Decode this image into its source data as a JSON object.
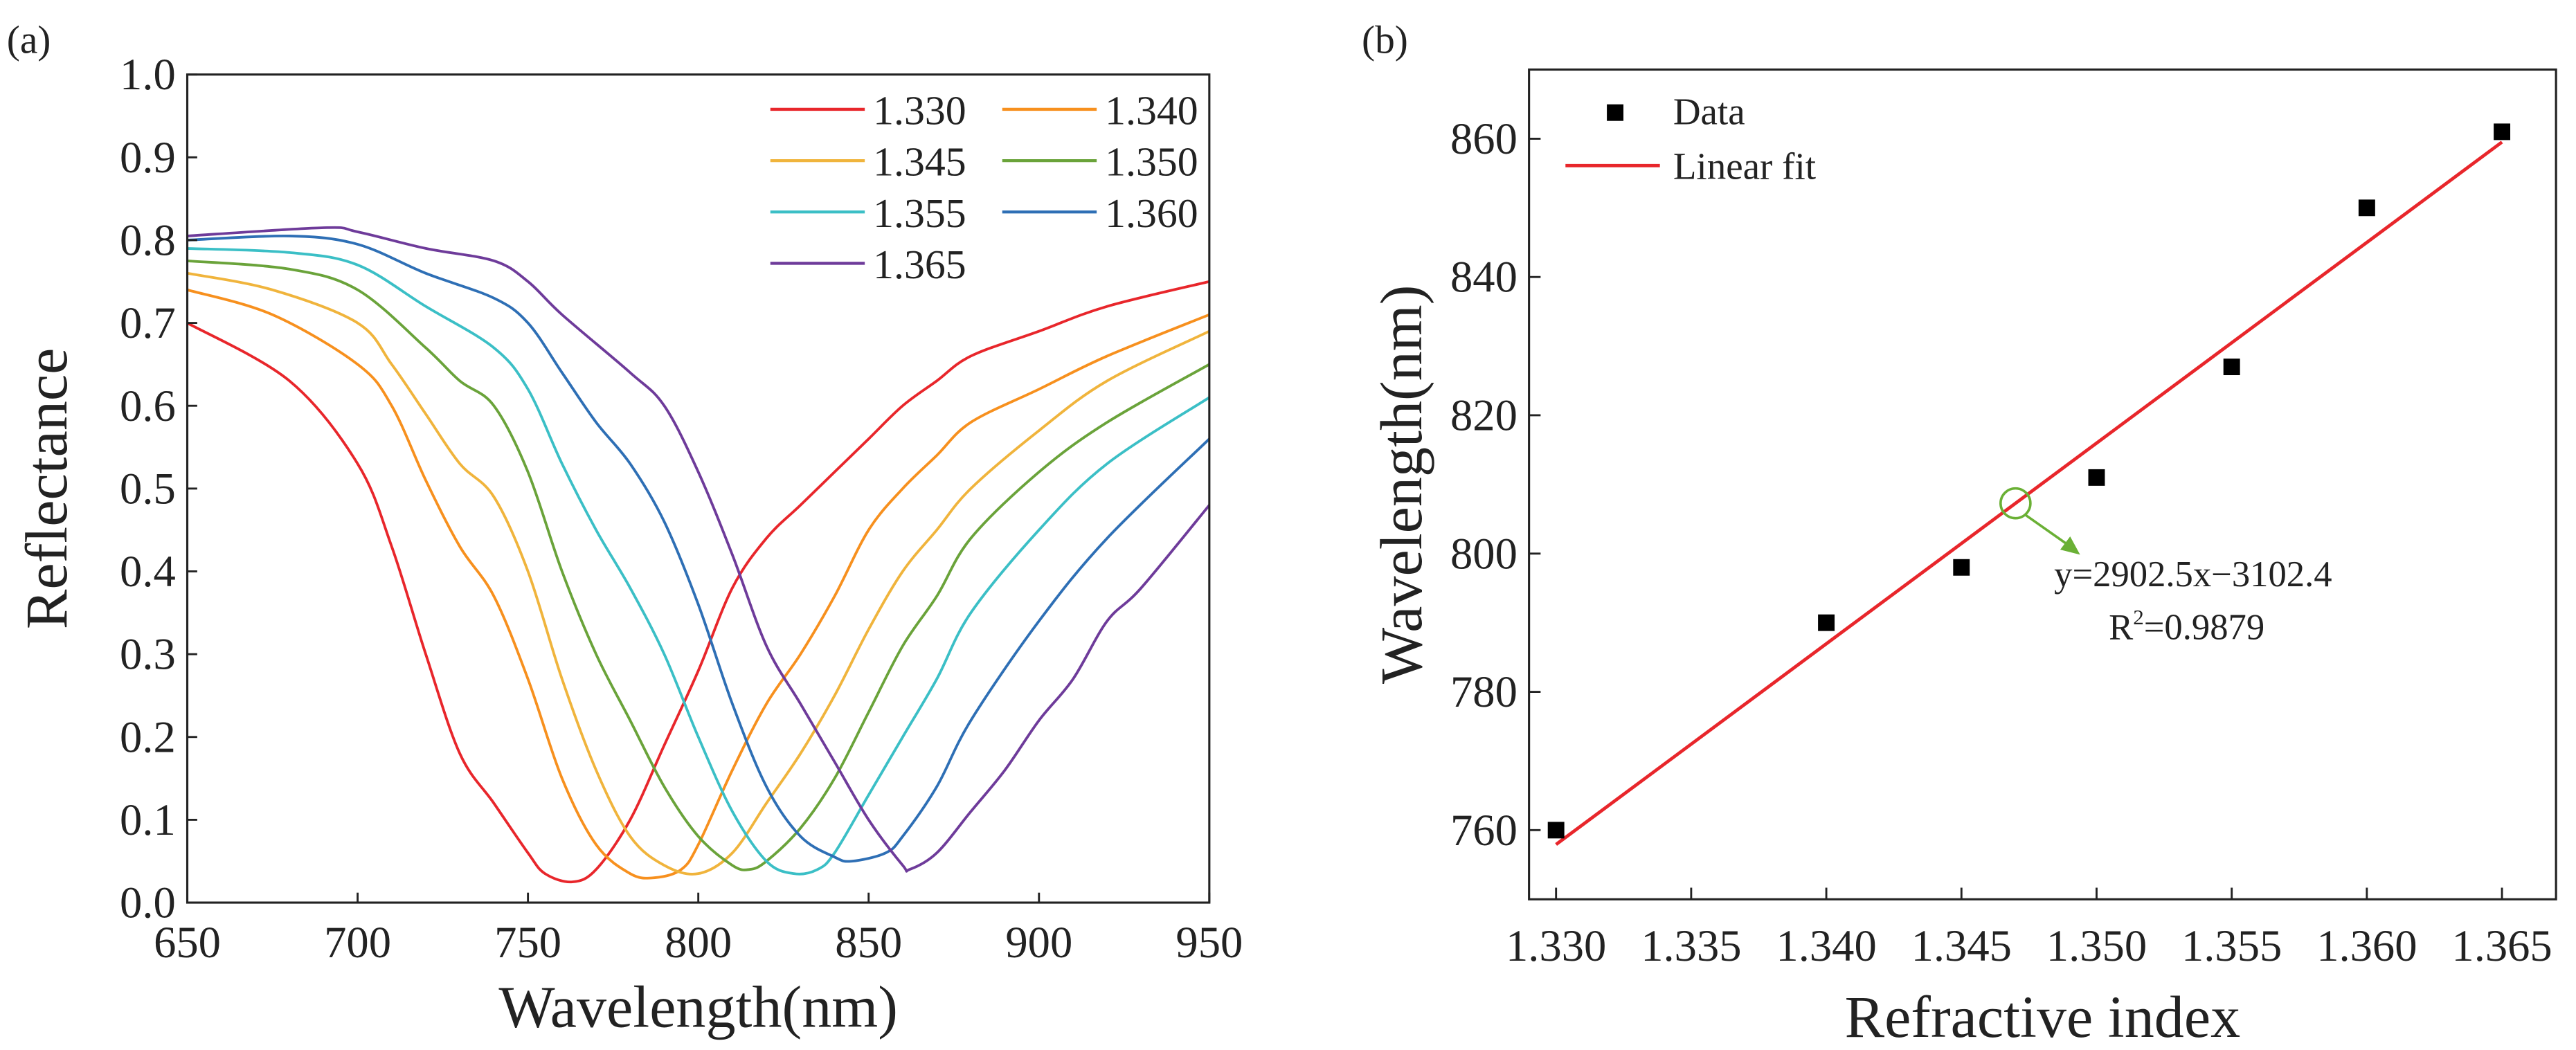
{
  "chart_data": [
    {
      "panel_label": "(a)",
      "type": "line",
      "xlabel": "Wavelength(nm)",
      "ylabel": "Reflectance",
      "xlim": [
        650,
        950
      ],
      "ylim": [
        0,
        1.0
      ],
      "xticks": [
        "650",
        "700",
        "750",
        "800",
        "850",
        "900",
        "950"
      ],
      "yticks": [
        "0.0",
        "0.1",
        "0.2",
        "0.3",
        "0.4",
        "0.5",
        "0.6",
        "0.7",
        "0.8",
        "0.9",
        "1.0"
      ],
      "legend_position": "top-right",
      "series": [
        {
          "name": "1.330",
          "color": "#e8262b",
          "x": [
            650,
            680,
            700,
            710,
            720,
            730,
            740,
            750,
            755,
            763,
            770,
            780,
            790,
            800,
            810,
            820,
            830,
            840,
            850,
            860,
            870,
            880,
            900,
            920,
            950
          ],
          "y": [
            0.7,
            0.63,
            0.53,
            0.43,
            0.3,
            0.18,
            0.12,
            0.06,
            0.035,
            0.025,
            0.04,
            0.1,
            0.19,
            0.28,
            0.38,
            0.44,
            0.48,
            0.52,
            0.56,
            0.6,
            0.63,
            0.66,
            0.69,
            0.72,
            0.75
          ]
        },
        {
          "name": "1.340",
          "color": "#f7901e",
          "x": [
            650,
            675,
            700,
            710,
            720,
            730,
            740,
            750,
            760,
            770,
            780,
            787,
            795,
            800,
            810,
            820,
            830,
            840,
            850,
            860,
            870,
            880,
            900,
            920,
            950
          ],
          "y": [
            0.74,
            0.71,
            0.65,
            0.6,
            0.51,
            0.43,
            0.37,
            0.27,
            0.15,
            0.07,
            0.035,
            0.03,
            0.04,
            0.07,
            0.16,
            0.24,
            0.3,
            0.37,
            0.45,
            0.5,
            0.54,
            0.58,
            0.62,
            0.66,
            0.71
          ]
        },
        {
          "name": "1.345",
          "color": "#f0b43c",
          "x": [
            650,
            675,
            700,
            710,
            720,
            730,
            740,
            750,
            760,
            770,
            780,
            790,
            800,
            810,
            820,
            830,
            840,
            850,
            860,
            870,
            880,
            900,
            920,
            950
          ],
          "y": [
            0.76,
            0.74,
            0.7,
            0.65,
            0.59,
            0.53,
            0.49,
            0.4,
            0.27,
            0.16,
            0.08,
            0.045,
            0.035,
            0.06,
            0.12,
            0.18,
            0.25,
            0.33,
            0.4,
            0.45,
            0.5,
            0.57,
            0.63,
            0.69
          ]
        },
        {
          "name": "1.350",
          "color": "#6aa33a",
          "x": [
            650,
            680,
            700,
            720,
            730,
            740,
            750,
            760,
            770,
            780,
            790,
            800,
            810,
            815,
            820,
            830,
            840,
            850,
            860,
            870,
            880,
            900,
            920,
            950
          ],
          "y": [
            0.775,
            0.765,
            0.74,
            0.67,
            0.63,
            0.6,
            0.52,
            0.4,
            0.3,
            0.22,
            0.14,
            0.08,
            0.045,
            0.04,
            0.05,
            0.09,
            0.15,
            0.23,
            0.31,
            0.37,
            0.44,
            0.52,
            0.58,
            0.65
          ]
        },
        {
          "name": "1.355",
          "color": "#3bbfc6",
          "x": [
            650,
            680,
            700,
            720,
            740,
            750,
            760,
            770,
            780,
            790,
            800,
            810,
            820,
            828,
            835,
            840,
            850,
            860,
            870,
            880,
            900,
            920,
            950
          ],
          "y": [
            0.79,
            0.785,
            0.77,
            0.72,
            0.67,
            0.62,
            0.53,
            0.45,
            0.38,
            0.3,
            0.2,
            0.11,
            0.05,
            0.035,
            0.04,
            0.06,
            0.13,
            0.2,
            0.27,
            0.35,
            0.45,
            0.53,
            0.61
          ]
        },
        {
          "name": "1.360",
          "color": "#2e6fb5",
          "x": [
            650,
            680,
            700,
            720,
            740,
            750,
            760,
            770,
            780,
            790,
            800,
            810,
            820,
            830,
            840,
            845,
            855,
            860,
            870,
            880,
            900,
            920,
            950
          ],
          "y": [
            0.8,
            0.805,
            0.795,
            0.76,
            0.73,
            0.7,
            0.64,
            0.58,
            0.53,
            0.46,
            0.36,
            0.24,
            0.14,
            0.08,
            0.055,
            0.05,
            0.06,
            0.08,
            0.14,
            0.22,
            0.34,
            0.44,
            0.56
          ]
        },
        {
          "name": "1.365",
          "color": "#6e3b9a",
          "x": [
            650,
            690,
            700,
            720,
            740,
            750,
            760,
            780,
            790,
            800,
            810,
            820,
            830,
            840,
            850,
            860,
            862,
            870,
            880,
            890,
            900,
            910,
            920,
            930,
            950
          ],
          "y": [
            0.805,
            0.815,
            0.81,
            0.79,
            0.775,
            0.75,
            0.71,
            0.64,
            0.6,
            0.52,
            0.42,
            0.31,
            0.24,
            0.17,
            0.1,
            0.045,
            0.04,
            0.06,
            0.11,
            0.16,
            0.22,
            0.27,
            0.34,
            0.38,
            0.48
          ]
        }
      ]
    },
    {
      "panel_label": "(b)",
      "type": "scatter",
      "xlabel": "Refractive index",
      "ylabel": "Wavelength(nm)",
      "xlim": [
        1.329,
        1.367
      ],
      "ylim": [
        750,
        870
      ],
      "xticks": [
        "1.330",
        "1.335",
        "1.340",
        "1.345",
        "1.350",
        "1.355",
        "1.360",
        "1.365"
      ],
      "yticks": [
        "760",
        "780",
        "800",
        "820",
        "840",
        "860"
      ],
      "legend_position": "top-left",
      "series": [
        {
          "name": "Data",
          "type": "scatter",
          "color": "#000000",
          "x": [
            1.33,
            1.34,
            1.345,
            1.35,
            1.355,
            1.36,
            1.365
          ],
          "y": [
            760,
            790,
            798,
            811,
            827,
            850,
            861
          ]
        },
        {
          "name": "Linear fit",
          "type": "line",
          "color": "#e8262b",
          "slope": 2902.5,
          "intercept": -3102.4,
          "x_range": [
            1.33,
            1.365
          ]
        }
      ],
      "annotation": {
        "equation": "y=2902.5x−3102.4",
        "r2_prefix": "R",
        "r2_sup": "2",
        "r2_value": "=0.9879",
        "marker_x": 1.347,
        "color": "#6ab035"
      }
    }
  ]
}
